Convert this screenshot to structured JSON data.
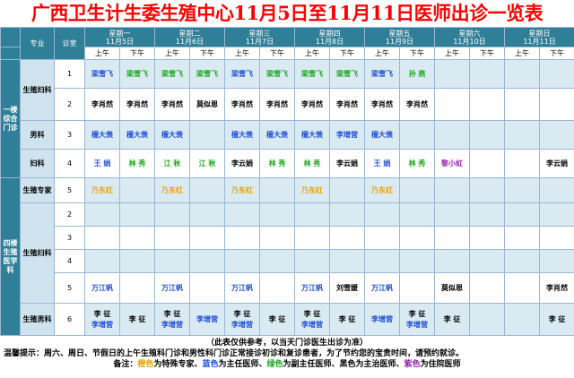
{
  "title": "广西卫生计生委生殖中心11月5日至11月11日医师出诊一览表",
  "header": {
    "specialty_label": "专业",
    "room_label": "诊室",
    "am": "上午",
    "pm": "下午",
    "days": [
      {
        "weekday": "星期一",
        "date": "11月5日"
      },
      {
        "weekday": "星期二",
        "date": "11月6日"
      },
      {
        "weekday": "星期三",
        "date": "11月7日"
      },
      {
        "weekday": "星期四",
        "date": "11月8日"
      },
      {
        "weekday": "星期五",
        "date": "11月9日"
      },
      {
        "weekday": "星期六",
        "date": "11月10日"
      },
      {
        "weekday": "星期日",
        "date": "11月11日"
      }
    ]
  },
  "floors": [
    {
      "label": "一楼综合门诊"
    },
    {
      "label": "四楼生殖医学科"
    }
  ],
  "rows": [
    {
      "specialty": "生殖妇科",
      "room": "1",
      "cells": [
        [
          {
            "t": "梁雪飞",
            "c": "blue"
          }
        ],
        [
          {
            "t": "梁雪飞",
            "c": "green"
          }
        ],
        [
          {
            "t": "梁雪飞",
            "c": "green"
          }
        ],
        [
          {
            "t": "梁雪飞",
            "c": "green"
          }
        ],
        [
          {
            "t": "梁雪飞",
            "c": "blue"
          }
        ],
        [
          {
            "t": "梁雪飞",
            "c": "green"
          }
        ],
        [
          {
            "t": "梁雪飞",
            "c": "green"
          }
        ],
        [
          {
            "t": "梁雪飞",
            "c": "green"
          }
        ],
        [
          {
            "t": "梁雪飞",
            "c": "blue"
          }
        ],
        [
          {
            "t": "孙 燕",
            "c": "green"
          }
        ],
        [],
        [],
        [],
        []
      ]
    },
    {
      "specialty": "",
      "room": "2",
      "cells": [
        [
          {
            "t": "李肖然",
            "c": "black"
          }
        ],
        [
          {
            "t": "李肖然",
            "c": "black"
          }
        ],
        [
          {
            "t": "李肖然",
            "c": "black"
          }
        ],
        [
          {
            "t": "莫似恩",
            "c": "black"
          }
        ],
        [
          {
            "t": "李肖然",
            "c": "black"
          }
        ],
        [
          {
            "t": "李肖然",
            "c": "black"
          }
        ],
        [
          {
            "t": "李肖然",
            "c": "black"
          }
        ],
        [
          {
            "t": "李肖然",
            "c": "black"
          }
        ],
        [
          {
            "t": "李肖然",
            "c": "black"
          }
        ],
        [
          {
            "t": "李肖然",
            "c": "black"
          }
        ],
        [],
        [],
        [],
        []
      ]
    },
    {
      "specialty": "男科",
      "room": "3",
      "cells": [
        [
          {
            "t": "檀大羡",
            "c": "blue"
          }
        ],
        [
          {
            "t": "檀大羡",
            "c": "blue"
          }
        ],
        [
          {
            "t": "檀大羡",
            "c": "blue"
          }
        ],
        [],
        [
          {
            "t": "檀大羡",
            "c": "blue"
          }
        ],
        [
          {
            "t": "檀大羡",
            "c": "blue"
          }
        ],
        [
          {
            "t": "檀大羡",
            "c": "blue"
          }
        ],
        [
          {
            "t": "李增营",
            "c": "blue"
          }
        ],
        [
          {
            "t": "檀大羡",
            "c": "blue"
          }
        ],
        [],
        [],
        [],
        [],
        []
      ]
    },
    {
      "specialty": "妇科",
      "room": "4",
      "cells": [
        [
          {
            "t": "王 娟",
            "c": "blue"
          }
        ],
        [
          {
            "t": "林 秀",
            "c": "green"
          }
        ],
        [
          {
            "t": "江 秋",
            "c": "green"
          }
        ],
        [
          {
            "t": "江 秋",
            "c": "green"
          }
        ],
        [
          {
            "t": "李云娟",
            "c": "black"
          }
        ],
        [
          {
            "t": "林 秀",
            "c": "green"
          }
        ],
        [
          {
            "t": "林 秀",
            "c": "green"
          }
        ],
        [
          {
            "t": "李云娟",
            "c": "black"
          }
        ],
        [
          {
            "t": "王 娟",
            "c": "blue"
          }
        ],
        [
          {
            "t": "林 秀",
            "c": "green"
          }
        ],
        [
          {
            "t": "黎小虹",
            "c": "purple"
          }
        ],
        [],
        [],
        [
          {
            "t": "李云娟",
            "c": "black"
          }
        ]
      ]
    },
    {
      "specialty": "生殖专家",
      "room": "5",
      "cells": [
        [
          {
            "t": "乃东红",
            "c": "orange"
          }
        ],
        [],
        [
          {
            "t": "乃东红",
            "c": "orange"
          }
        ],
        [],
        [
          {
            "t": "乃东红",
            "c": "orange"
          }
        ],
        [],
        [
          {
            "t": "乃东红",
            "c": "orange"
          }
        ],
        [],
        [
          {
            "t": "乃东红",
            "c": "orange"
          }
        ],
        [],
        [],
        [],
        [],
        []
      ]
    },
    {
      "specialty": "生殖妇科",
      "room": "2",
      "cells": [
        [],
        [],
        [],
        [],
        [],
        [],
        [],
        [],
        [],
        [],
        [],
        [],
        [],
        []
      ]
    },
    {
      "specialty": "",
      "room": "3",
      "cells": [
        [],
        [],
        [],
        [],
        [],
        [],
        [],
        [],
        [],
        [],
        [],
        [],
        [],
        []
      ]
    },
    {
      "specialty": "",
      "room": "4",
      "cells": [
        [],
        [],
        [],
        [],
        [],
        [],
        [],
        [],
        [],
        [],
        [],
        [],
        [],
        []
      ]
    },
    {
      "specialty": "",
      "room": "5",
      "cells": [
        [
          {
            "t": "万江帆",
            "c": "blue"
          }
        ],
        [],
        [
          {
            "t": "万江帆",
            "c": "blue"
          }
        ],
        [],
        [
          {
            "t": "万江帆",
            "c": "blue"
          }
        ],
        [],
        [
          {
            "t": "万江帆",
            "c": "blue"
          }
        ],
        [
          {
            "t": "刘雪媛",
            "c": "black"
          }
        ],
        [
          {
            "t": "万江帆",
            "c": "blue"
          }
        ],
        [],
        [
          {
            "t": "莫似恩",
            "c": "black"
          }
        ],
        [],
        [],
        [
          {
            "t": "李肖然",
            "c": "black"
          }
        ]
      ]
    },
    {
      "specialty": "生殖男科",
      "room": "6",
      "cells": [
        [
          {
            "t": "李 征",
            "c": "black"
          },
          {
            "t": "李增营",
            "c": "blue"
          }
        ],
        [
          {
            "t": "李 征",
            "c": "black"
          }
        ],
        [
          {
            "t": "李 征",
            "c": "black"
          },
          {
            "t": "李增营",
            "c": "blue"
          }
        ],
        [
          {
            "t": "李增营",
            "c": "blue"
          }
        ],
        [
          {
            "t": "李 征",
            "c": "black"
          },
          {
            "t": "李增营",
            "c": "blue"
          }
        ],
        [
          {
            "t": "李 征",
            "c": "black"
          }
        ],
        [
          {
            "t": "李 征",
            "c": "black"
          },
          {
            "t": "李增营",
            "c": "blue"
          }
        ],
        [
          {
            "t": "李 征",
            "c": "black"
          }
        ],
        [
          {
            "t": "李增营",
            "c": "blue"
          }
        ],
        [
          {
            "t": "李 征",
            "c": "black"
          },
          {
            "t": "李增营",
            "c": "blue"
          }
        ],
        [
          {
            "t": "李 征",
            "c": "black"
          }
        ],
        [],
        [],
        [
          {
            "t": "李 征",
            "c": "black"
          }
        ]
      ]
    }
  ],
  "colors": {
    "blue": "#1f4fd8",
    "green": "#1aa81a",
    "orange": "#e8a000",
    "black": "#000000",
    "purple": "#9b1fb4"
  },
  "notes": {
    "disclaimer": "（此表仅供参考，以当天门诊医生出诊为准）",
    "reminder": "温馨提示：周六、周日、节假日的上午生殖科门诊和男性科门诊正常接诊初诊和复诊患者，为了节约您的宝贵时间，请预约就诊。",
    "legend_prefix": "备注：",
    "legend_orange": "橙色",
    "legend_orange_text": "为特殊专家、",
    "legend_blue": "蓝色",
    "legend_blue_text": "为主任医师、",
    "legend_green": "绿色",
    "legend_green_text": "为副主任医师、",
    "legend_black": "黑色",
    "legend_black_text": "为主治医师、",
    "legend_purple": "紫色",
    "legend_purple_text": "为住院医师"
  }
}
